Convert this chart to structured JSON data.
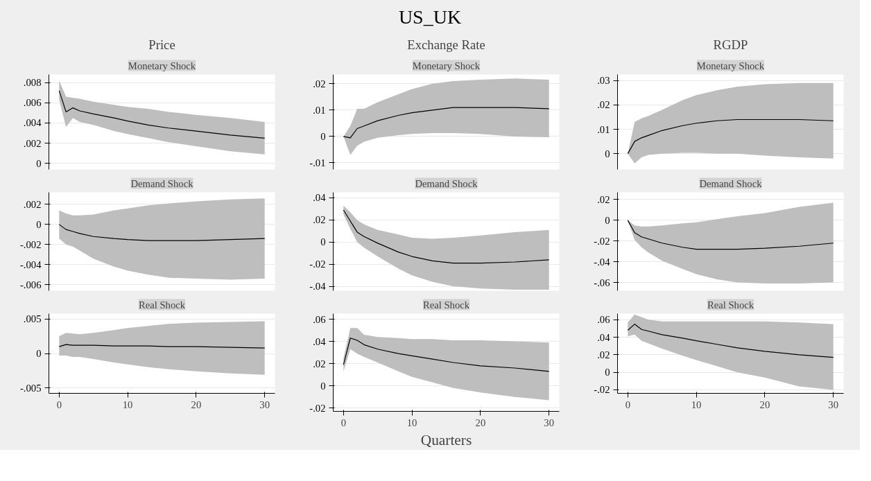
{
  "chart_data": [
    {
      "type": "line",
      "title": "Price",
      "subtitle": "Monetary Shock",
      "tick_labels": "y",
      "grid": "y",
      "xlim": [
        -1.5,
        31.5
      ],
      "ylim": [
        -0.0006,
        0.0088
      ],
      "yticks": [
        {
          "value": 0,
          "label": "0"
        },
        {
          "value": 0.002,
          "label": ".002"
        },
        {
          "value": 0.004,
          "label": ".004"
        },
        {
          "value": 0.006,
          "label": ".006"
        },
        {
          "value": 0.008,
          "label": ".008"
        }
      ],
      "x": [
        0,
        1,
        2,
        3,
        5,
        8,
        10,
        13,
        16,
        20,
        25,
        30
      ],
      "series": [
        {
          "color": "#000000",
          "values": [
            0.0072,
            0.0051,
            0.0055,
            0.0052,
            0.0049,
            0.0045,
            0.0042,
            0.0038,
            0.0035,
            0.0032,
            0.0028,
            0.0025
          ],
          "upper": [
            0.0082,
            0.0066,
            0.0065,
            0.0064,
            0.0061,
            0.0058,
            0.0056,
            0.0054,
            0.0051,
            0.0048,
            0.0045,
            0.0041
          ],
          "lower": [
            0.0063,
            0.0036,
            0.0045,
            0.0041,
            0.0038,
            0.0032,
            0.0029,
            0.0025,
            0.0021,
            0.0017,
            0.0012,
            0.0009
          ]
        }
      ]
    },
    {
      "type": "line",
      "title": "Exchange Rate",
      "subtitle": "Monetary Shock",
      "annotations": [
        "US_UK"
      ],
      "tick_labels": "y",
      "grid": "y",
      "xlim": [
        -1.5,
        31.5
      ],
      "ylim": [
        -0.0125,
        0.0235
      ],
      "yticks": [
        {
          "value": -0.01,
          "label": "-.01"
        },
        0,
        {
          "value": 0.01,
          "label": ".01"
        },
        {
          "value": 0.02,
          "label": ".02"
        }
      ],
      "x": [
        0,
        1,
        2,
        3,
        5,
        8,
        10,
        13,
        16,
        20,
        25,
        30
      ],
      "series": [
        {
          "color": "#000000",
          "values": [
            0,
            -0.0005,
            0.003,
            0.004,
            0.006,
            0.008,
            0.009,
            0.01,
            0.011,
            0.011,
            0.011,
            0.0105
          ],
          "upper": [
            0,
            0.004,
            0.0105,
            0.0105,
            0.013,
            0.016,
            0.018,
            0.02,
            0.021,
            0.0215,
            0.022,
            0.0215
          ],
          "lower": [
            0,
            -0.007,
            -0.0035,
            -0.002,
            -0.0005,
            0.0005,
            0.001,
            0.0013,
            0.0013,
            0.001,
            0,
            -0.0003
          ]
        }
      ]
    },
    {
      "type": "line",
      "title": "RGDP",
      "subtitle": "Monetary Shock",
      "tick_labels": "y",
      "grid": "y",
      "xlim": [
        -1.5,
        31.5
      ],
      "ylim": [
        -0.0065,
        0.0325
      ],
      "yticks": [
        0,
        {
          "value": 0.01,
          "label": ".01"
        },
        {
          "value": 0.02,
          "label": ".02"
        },
        {
          "value": 0.03,
          "label": ".03"
        }
      ],
      "x": [
        0,
        1,
        2,
        3,
        5,
        8,
        10,
        13,
        16,
        20,
        25,
        30
      ],
      "series": [
        {
          "color": "#000000",
          "values": [
            0,
            0.005,
            0.0065,
            0.0075,
            0.0095,
            0.0115,
            0.0125,
            0.0135,
            0.014,
            0.014,
            0.014,
            0.0135
          ],
          "upper": [
            0,
            0.013,
            0.0145,
            0.0155,
            0.018,
            0.022,
            0.024,
            0.026,
            0.0275,
            0.0285,
            0.029,
            0.029
          ],
          "lower": [
            0,
            -0.004,
            -0.0015,
            -0.0005,
            0,
            0.0003,
            0.0003,
            0,
            0,
            -0.0008,
            -0.0015,
            -0.002
          ]
        }
      ]
    },
    {
      "type": "line",
      "subtitle": "Demand Shock",
      "tick_labels": "y",
      "grid": "y",
      "xlim": [
        -1.5,
        31.5
      ],
      "ylim": [
        -0.0066,
        0.0032
      ],
      "yticks": [
        {
          "value": -0.006,
          "label": "-.006"
        },
        {
          "value": -0.004,
          "label": "-.004"
        },
        {
          "value": -0.002,
          "label": "-.002"
        },
        0,
        {
          "value": 0.002,
          "label": ".002"
        }
      ],
      "x": [
        0,
        1,
        2,
        3,
        5,
        8,
        10,
        13,
        16,
        20,
        25,
        30
      ],
      "series": [
        {
          "color": "#000000",
          "values": [
            0,
            -0.0005,
            -0.0007,
            -0.0009,
            -0.0012,
            -0.0014,
            -0.0015,
            -0.0016,
            -0.0016,
            -0.0016,
            -0.0015,
            -0.0014
          ],
          "upper": [
            0.0014,
            0.0011,
            0.0009,
            0.0009,
            0.001,
            0.0014,
            0.0016,
            0.0019,
            0.0021,
            0.0023,
            0.0025,
            0.0026
          ],
          "lower": [
            -0.0014,
            -0.002,
            -0.0022,
            -0.0026,
            -0.0034,
            -0.0042,
            -0.0046,
            -0.005,
            -0.0053,
            -0.0054,
            -0.0055,
            -0.0054
          ]
        }
      ]
    },
    {
      "type": "line",
      "subtitle": "Demand Shock",
      "tick_labels": "y",
      "grid": "y",
      "xlim": [
        -1.5,
        31.5
      ],
      "ylim": [
        -0.044,
        0.045
      ],
      "yticks": [
        {
          "value": -0.04,
          "label": "-.04"
        },
        {
          "value": -0.02,
          "label": "-.02"
        },
        0,
        {
          "value": 0.02,
          "label": ".02"
        },
        {
          "value": 0.04,
          "label": ".04"
        }
      ],
      "x": [
        0,
        1,
        2,
        3,
        5,
        8,
        10,
        13,
        16,
        20,
        25,
        30
      ],
      "series": [
        {
          "color": "#000000",
          "values": [
            0.029,
            0.019,
            0.009,
            0.005,
            -0.001,
            -0.009,
            -0.013,
            -0.017,
            -0.019,
            -0.019,
            -0.018,
            -0.016
          ],
          "upper": [
            0.033,
            0.027,
            0.02,
            0.016,
            0.011,
            0.007,
            0.004,
            0.003,
            0.004,
            0.006,
            0.009,
            0.011
          ],
          "lower": [
            0.025,
            0.012,
            0,
            -0.005,
            -0.013,
            -0.024,
            -0.03,
            -0.036,
            -0.04,
            -0.042,
            -0.043,
            -0.043
          ]
        }
      ]
    },
    {
      "type": "line",
      "subtitle": "Demand Shock",
      "tick_labels": "y",
      "grid": "y",
      "xlim": [
        -1.5,
        31.5
      ],
      "ylim": [
        -0.068,
        0.027
      ],
      "yticks": [
        {
          "value": -0.06,
          "label": "-.06"
        },
        {
          "value": -0.04,
          "label": "-.04"
        },
        {
          "value": -0.02,
          "label": "-.02"
        },
        0,
        {
          "value": 0.02,
          "label": ".02"
        }
      ],
      "x": [
        0,
        1,
        2,
        3,
        5,
        8,
        10,
        13,
        16,
        20,
        25,
        30
      ],
      "series": [
        {
          "color": "#000000",
          "values": [
            0,
            -0.012,
            -0.016,
            -0.018,
            -0.022,
            -0.026,
            -0.028,
            -0.028,
            -0.028,
            -0.027,
            -0.025,
            -0.022
          ],
          "upper": [
            0,
            -0.005,
            -0.006,
            -0.006,
            -0.005,
            -0.003,
            -0.002,
            0.001,
            0.004,
            0.007,
            0.013,
            0.017
          ],
          "lower": [
            0,
            -0.019,
            -0.026,
            -0.031,
            -0.039,
            -0.047,
            -0.052,
            -0.057,
            -0.06,
            -0.061,
            -0.061,
            -0.06
          ]
        }
      ]
    },
    {
      "type": "line",
      "subtitle": "Real Shock",
      "grid": "y",
      "xlim": [
        -1.5,
        31.5
      ],
      "xticks": [
        0,
        10,
        20,
        30
      ],
      "ylim": [
        -0.0058,
        0.0058
      ],
      "yticks": [
        {
          "value": -0.005,
          "label": "-.005"
        },
        0,
        {
          "value": 0.005,
          "label": ".005"
        }
      ],
      "x": [
        0,
        1,
        2,
        3,
        5,
        8,
        10,
        13,
        16,
        20,
        25,
        30
      ],
      "series": [
        {
          "color": "#000000",
          "values": [
            0.001,
            0.0013,
            0.0012,
            0.0012,
            0.0012,
            0.0011,
            0.0011,
            0.0011,
            0.001,
            0.001,
            0.0009,
            0.0008
          ],
          "upper": [
            0.0025,
            0.003,
            0.0029,
            0.0028,
            0.003,
            0.0034,
            0.0037,
            0.004,
            0.0043,
            0.0045,
            0.0046,
            0.0047
          ],
          "lower": [
            -0.0003,
            -0.0003,
            -0.0005,
            -0.0005,
            -0.0008,
            -0.0013,
            -0.0016,
            -0.002,
            -0.0023,
            -0.0026,
            -0.0029,
            -0.0031
          ]
        }
      ]
    },
    {
      "type": "line",
      "subtitle": "Real Shock",
      "xlabel": "Quarters",
      "grid": "y",
      "xlim": [
        -1.5,
        31.5
      ],
      "xticks": [
        0,
        10,
        20,
        30
      ],
      "ylim": [
        -0.023,
        0.065
      ],
      "yticks": [
        {
          "value": -0.02,
          "label": "-.02"
        },
        0,
        {
          "value": 0.02,
          "label": ".02"
        },
        {
          "value": 0.04,
          "label": ".04"
        },
        {
          "value": 0.06,
          "label": ".06"
        }
      ],
      "x": [
        0,
        1,
        2,
        3,
        5,
        8,
        10,
        13,
        16,
        20,
        25,
        30
      ],
      "series": [
        {
          "color": "#000000",
          "values": [
            0.019,
            0.043,
            0.041,
            0.037,
            0.033,
            0.029,
            0.027,
            0.024,
            0.021,
            0.018,
            0.016,
            0.013
          ],
          "upper": [
            0.025,
            0.052,
            0.052,
            0.046,
            0.044,
            0.043,
            0.042,
            0.042,
            0.041,
            0.041,
            0.04,
            0.039
          ],
          "lower": [
            0.013,
            0.033,
            0.029,
            0.026,
            0.021,
            0.013,
            0.008,
            0.003,
            -0.002,
            -0.006,
            -0.01,
            -0.013
          ]
        }
      ]
    },
    {
      "type": "line",
      "subtitle": "Real Shock",
      "grid": "y",
      "xlim": [
        -1.5,
        31.5
      ],
      "xticks": [
        0,
        10,
        20,
        30
      ],
      "ylim": [
        -0.024,
        0.067
      ],
      "yticks": [
        {
          "value": -0.02,
          "label": "-.02"
        },
        0,
        {
          "value": 0.02,
          "label": ".02"
        },
        {
          "value": 0.04,
          "label": ".04"
        },
        {
          "value": 0.06,
          "label": ".06"
        }
      ],
      "x": [
        0,
        1,
        2,
        3,
        5,
        8,
        10,
        13,
        16,
        20,
        25,
        30
      ],
      "series": [
        {
          "color": "#000000",
          "values": [
            0.048,
            0.055,
            0.049,
            0.047,
            0.043,
            0.039,
            0.036,
            0.032,
            0.028,
            0.024,
            0.02,
            0.017
          ],
          "upper": [
            0.057,
            0.066,
            0.063,
            0.06,
            0.058,
            0.058,
            0.058,
            0.058,
            0.058,
            0.058,
            0.057,
            0.055
          ],
          "lower": [
            0.041,
            0.043,
            0.036,
            0.033,
            0.027,
            0.019,
            0.014,
            0.007,
            0,
            -0.006,
            -0.016,
            -0.02
          ]
        }
      ]
    }
  ]
}
